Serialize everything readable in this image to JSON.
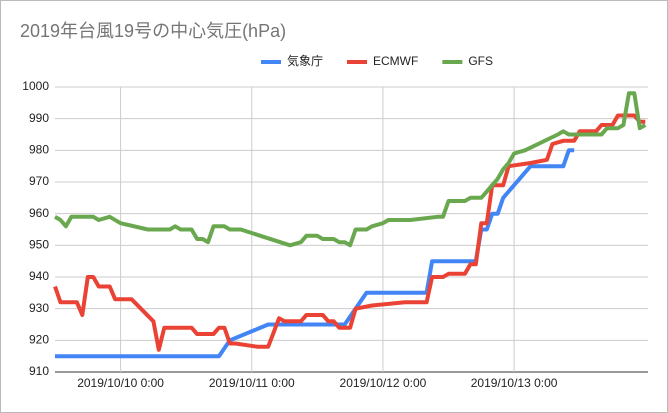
{
  "chart_data": {
    "type": "line",
    "title": "2019年台風19号の中心気圧(hPa)",
    "legend_position": "top",
    "grid": true,
    "xlim": [
      "2019/10/09 12:00",
      "2019/10/14 0:30"
    ],
    "xticks": [
      "2019/10/10 0:00",
      "2019/10/11 0:00",
      "2019/10/12 0:00",
      "2019/10/13 0:00"
    ],
    "ylim": [
      910,
      1000
    ],
    "yticks": [
      910,
      920,
      930,
      940,
      950,
      960,
      970,
      980,
      990,
      1000
    ],
    "series": [
      {
        "name": "気象庁",
        "color": "#4285f4",
        "x": [
          "2019/10/09 12:00",
          "2019/10/10 18:00",
          "2019/10/10 20:00",
          "2019/10/11 3:00",
          "2019/10/11 17:00",
          "2019/10/11 21:00",
          "2019/10/12 8:00",
          "2019/10/12 9:00",
          "2019/10/12 17:00",
          "2019/10/12 18:00",
          "2019/10/12 19:00",
          "2019/10/12 20:00",
          "2019/10/12 21:00",
          "2019/10/12 22:00",
          "2019/10/13 3:00",
          "2019/10/13 9:00",
          "2019/10/13 10:00",
          "2019/10/13 11:00"
        ],
        "values": [
          915,
          915,
          920,
          925,
          925,
          935,
          935,
          945,
          945,
          955,
          955,
          960,
          960,
          965,
          975,
          975,
          980,
          980
        ]
      },
      {
        "name": "ECMWF",
        "color": "#ea4335",
        "x": [
          "2019/10/09 12:00",
          "2019/10/09 13:00",
          "2019/10/09 16:00",
          "2019/10/09 17:00",
          "2019/10/09 18:00",
          "2019/10/09 19:00",
          "2019/10/09 20:00",
          "2019/10/09 22:00",
          "2019/10/09 23:00",
          "2019/10/10 2:00",
          "2019/10/10 6:00",
          "2019/10/10 7:00",
          "2019/10/10 8:00",
          "2019/10/10 13:00",
          "2019/10/10 14:00",
          "2019/10/10 17:00",
          "2019/10/10 18:00",
          "2019/10/10 19:00",
          "2019/10/10 20:00",
          "2019/10/10 21:00",
          "2019/10/11 1:00",
          "2019/10/11 3:00",
          "2019/10/11 5:00",
          "2019/10/11 6:00",
          "2019/10/11 9:00",
          "2019/10/11 10:00",
          "2019/10/11 13:00",
          "2019/10/11 14:00",
          "2019/10/11 15:00",
          "2019/10/11 16:00",
          "2019/10/11 18:00",
          "2019/10/11 19:00",
          "2019/10/11 22:00",
          "2019/10/12 4:00",
          "2019/10/12 8:00",
          "2019/10/12 9:00",
          "2019/10/12 11:00",
          "2019/10/12 12:00",
          "2019/10/12 15:00",
          "2019/10/12 16:00",
          "2019/10/12 17:00",
          "2019/10/12 18:00",
          "2019/10/12 19:00",
          "2019/10/12 20:00",
          "2019/10/12 22:00",
          "2019/10/12 23:00",
          "2019/10/13 3:00",
          "2019/10/13 6:00",
          "2019/10/13 7:00",
          "2019/10/13 9:00",
          "2019/10/13 11:00",
          "2019/10/13 12:00",
          "2019/10/13 15:00",
          "2019/10/13 16:00",
          "2019/10/13 18:00",
          "2019/10/13 19:00",
          "2019/10/13 22:00",
          "2019/10/13 23:00",
          "2019/10/14 0:00"
        ],
        "values": [
          937,
          932,
          932,
          928,
          940,
          940,
          937,
          937,
          933,
          933,
          926,
          917,
          924,
          924,
          922,
          922,
          924,
          924,
          919,
          919,
          918,
          918,
          927,
          926,
          926,
          928,
          928,
          926,
          926,
          924,
          924,
          930,
          931,
          932,
          932,
          940,
          940,
          941,
          941,
          944,
          944,
          957,
          957,
          969,
          969,
          975,
          976,
          977,
          982,
          983,
          983,
          986,
          986,
          988,
          988,
          991,
          991,
          989,
          989
        ]
      },
      {
        "name": "GFS",
        "color": "#6aa84f",
        "x": [
          "2019/10/09 12:00",
          "2019/10/09 13:00",
          "2019/10/09 14:00",
          "2019/10/09 15:00",
          "2019/10/09 19:00",
          "2019/10/09 20:00",
          "2019/10/09 22:00",
          "2019/10/10 0:00",
          "2019/10/10 5:00",
          "2019/10/10 9:00",
          "2019/10/10 10:00",
          "2019/10/10 11:00",
          "2019/10/10 13:00",
          "2019/10/10 14:00",
          "2019/10/10 15:00",
          "2019/10/10 16:00",
          "2019/10/10 17:00",
          "2019/10/10 19:00",
          "2019/10/10 20:00",
          "2019/10/10 22:00",
          "2019/10/11 7:00",
          "2019/10/11 9:00",
          "2019/10/11 10:00",
          "2019/10/11 12:00",
          "2019/10/11 13:00",
          "2019/10/11 15:00",
          "2019/10/11 16:00",
          "2019/10/11 17:00",
          "2019/10/11 18:00",
          "2019/10/11 19:00",
          "2019/10/11 21:00",
          "2019/10/11 22:00",
          "2019/10/12 0:00",
          "2019/10/12 1:00",
          "2019/10/12 5:00",
          "2019/10/12 10:00",
          "2019/10/12 11:00",
          "2019/10/12 12:00",
          "2019/10/12 15:00",
          "2019/10/12 16:00",
          "2019/10/12 18:00",
          "2019/10/12 19:00",
          "2019/10/12 20:00",
          "2019/10/12 21:00",
          "2019/10/12 22:00",
          "2019/10/12 23:00",
          "2019/10/13 0:00",
          "2019/10/13 2:00",
          "2019/10/13 8:00",
          "2019/10/13 9:00",
          "2019/10/13 10:00",
          "2019/10/13 16:00",
          "2019/10/13 17:00",
          "2019/10/13 19:00",
          "2019/10/13 20:00",
          "2019/10/13 21:00",
          "2019/10/13 22:00",
          "2019/10/13 23:00",
          "2019/10/14 0:00"
        ],
        "values": [
          959,
          958,
          956,
          959,
          959,
          958,
          959,
          957,
          955,
          955,
          956,
          955,
          955,
          952,
          952,
          951,
          956,
          956,
          955,
          955,
          950,
          951,
          953,
          953,
          952,
          952,
          951,
          951,
          950,
          955,
          955,
          956,
          957,
          958,
          958,
          959,
          959,
          964,
          964,
          965,
          965,
          967,
          969,
          971,
          974,
          976,
          979,
          980,
          985,
          986,
          985,
          985,
          987,
          987,
          988,
          998,
          998,
          987,
          988
        ]
      }
    ]
  }
}
